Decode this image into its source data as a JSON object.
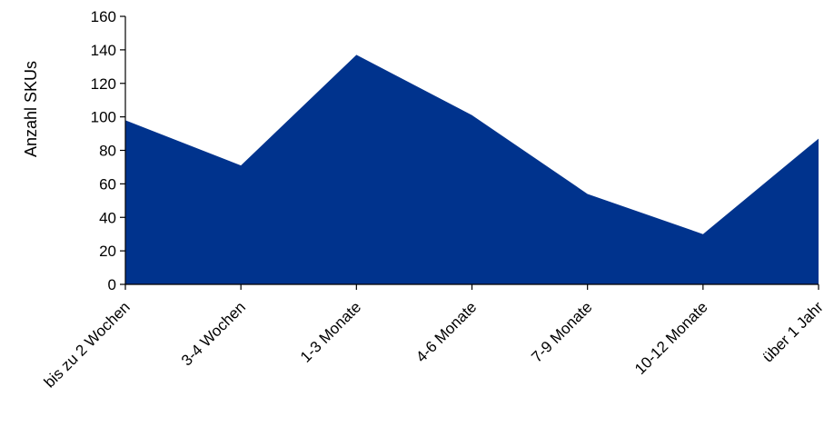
{
  "chart_data": {
    "type": "area",
    "ylabel": "Anzahl SKUs",
    "xlabel": "",
    "title": "",
    "categories": [
      "bis zu 2 Wochen",
      "3-4 Wochen",
      "1-3 Monate",
      "4-6 Monate",
      "7-9 Monate",
      "10-12 Monate",
      "über 1 Jahr"
    ],
    "series": [
      {
        "values": [
          98,
          71,
          137,
          101,
          54,
          30,
          87
        ]
      }
    ],
    "ylim": [
      0,
      160
    ],
    "yticks": [
      0,
      20,
      40,
      60,
      80,
      100,
      120,
      140,
      160
    ],
    "grid": false,
    "fill_color": "#00338D"
  }
}
